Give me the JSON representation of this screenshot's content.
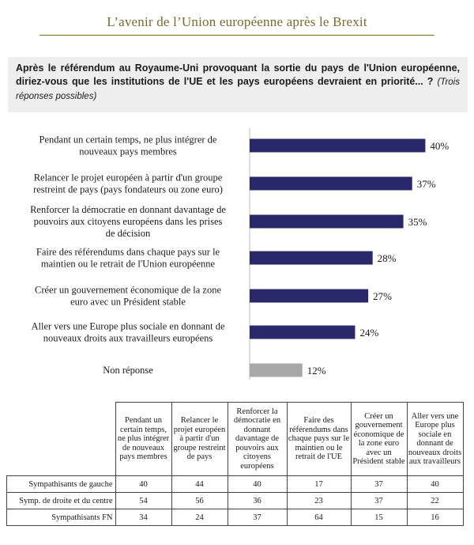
{
  "page": {
    "title": "L’avenir de l’Union européenne après le Brexit",
    "question": "Après le référendum au Royaume-Uni provoquant la sortie du pays de l'Union européenne, diriez-vous que les institutions de l'UE et les pays européens devraient en priorité... ?",
    "question_note": "(Trois réponses possibles)"
  },
  "colors": {
    "bar": "#28286b",
    "bar_nonresponse": "#a8a8a8",
    "title": "#7a6a2e",
    "question_bg": "#eeeeee"
  },
  "chart_data": {
    "type": "bar",
    "orientation": "horizontal",
    "categories": [
      [
        "Pendant un certain temps, ne plus intégrer de",
        "nouveaux pays membres"
      ],
      [
        "Relancer le projet européen à partir d'un groupe",
        "restreint de pays (pays fondateurs ou zone euro)"
      ],
      [
        "Renforcer la démocratie en donnant davantage de",
        "pouvoirs aux citoyens européens dans les prises",
        "de décision"
      ],
      [
        "Faire des référendums dans chaque pays sur le",
        "maintien ou le retrait de l'Union européenne"
      ],
      [
        "Créer un gouvernement économique de la zone",
        "euro avec un Président stable"
      ],
      [
        "Aller vers une Europe plus sociale en donnant de",
        "nouveaux droits aux travailleurs européens"
      ],
      [
        "Non réponse"
      ]
    ],
    "values": [
      40,
      37,
      35,
      28,
      27,
      24,
      12
    ],
    "value_labels": [
      "40%",
      "37%",
      "35%",
      "28%",
      "27%",
      "24%",
      "12%"
    ],
    "unit": "%",
    "xlim": [
      0,
      45
    ],
    "grid": false
  },
  "table": {
    "columns": [
      "Pendant un certain temps, ne plus intégrer de nouveaux pays membres",
      "Relancer le projet européen à partir d'un groupe restreint de pays",
      "Renforcer la démocratie en donnant davantage de pouvoirs aux citoyens européens",
      "Faire des référendums dans chaque pays sur le maintien ou le retrait de l'UE",
      "Créer un gouvernement économique de la zone euro avec un Président stable",
      "Aller vers une Europe plus sociale en donnant de nouveaux droits aux travailleurs"
    ],
    "rows": [
      {
        "label": "Sympathisants de gauche",
        "values": [
          "40",
          "44",
          "40",
          "17",
          "37",
          "40"
        ]
      },
      {
        "label": "Symp. de droite et du centre",
        "values": [
          "54",
          "56",
          "36",
          "23",
          "37",
          "22"
        ]
      },
      {
        "label": "Sympathisants FN",
        "values": [
          "34",
          "24",
          "37",
          "64",
          "15",
          "16"
        ]
      }
    ]
  }
}
